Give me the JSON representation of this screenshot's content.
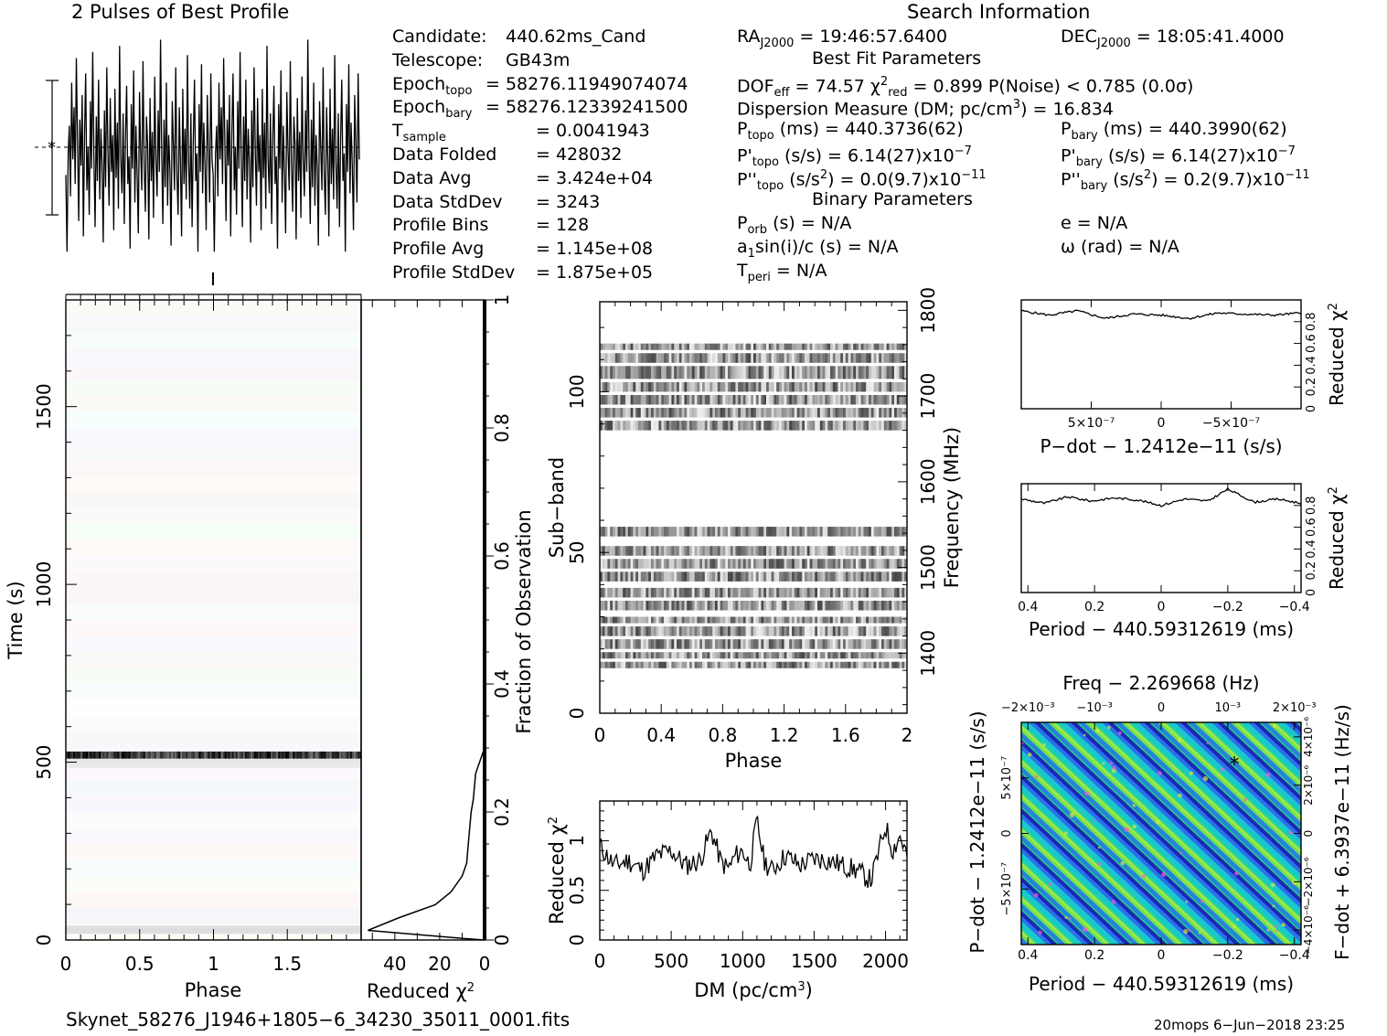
{
  "header": {
    "profile_title": "2 Pulses of Best Profile",
    "search_title": "Search Information"
  },
  "info_left": [
    {
      "label": "Candidate:",
      "value": "440.62ms_Cand"
    },
    {
      "label": "Telescope:",
      "value": "GB43m"
    },
    {
      "label": "Epoch",
      "sub": "topo",
      "value": "= 58276.11949074074"
    },
    {
      "label": "Epoch",
      "sub": "bary",
      "value": "= 58276.12339241500"
    },
    {
      "label": "T",
      "sub": "sample",
      "value": "=   0.0041943"
    },
    {
      "label": "Data Folded",
      "value": "=   428032"
    },
    {
      "label": "Data Avg",
      "value": "=   3.424e+04"
    },
    {
      "label": "Data StdDev",
      "value": "=   3243"
    },
    {
      "label": "Profile Bins",
      "value": "=   128"
    },
    {
      "label": "Profile Avg",
      "value": "=   1.145e+08"
    },
    {
      "label": "Profile StdDev",
      "value": "=   1.875e+05"
    }
  ],
  "info_right": {
    "ra": "RA",
    "ra_sub": "J2000",
    "ra_val": "= 19:46:57.6400",
    "dec": "DEC",
    "dec_sub": "J2000",
    "dec_val": "= 18:05:41.4000",
    "best_fit": "Best Fit Parameters",
    "dof": "DOF",
    "dof_sub": "eff",
    "dof_val": "= 74.57",
    "chi": "χ",
    "chi_sup": "2",
    "chi_sub": "red",
    "chi_val": "= 0.899",
    "pnoise": "P(Noise) < 0.785   (0.0σ)",
    "dm_line_a": "Dispersion Measure (DM; pc/cm",
    "dm_line_sup": "3",
    "dm_line_b": ") = 16.834",
    "ptopo": "P",
    "ptopo_sub": "topo",
    "ptopo_val": "(ms)  =   440.3736(62)",
    "pbary": "P",
    "pbary_sub": "bary",
    "pbary_val": "(ms)  =   440.3990(62)",
    "pdtopo": "P'",
    "pdtopo_sub": "topo",
    "pdtopo_val": "(s/s)  =   6.14(27)x10",
    "pdtopo_exp": "−7",
    "pdbary": "P'",
    "pdbary_sub": "bary",
    "pdbary_val": "(s/s)  =   6.14(27)x10",
    "pdbary_exp": "−7",
    "pddtopo": "P''",
    "pddtopo_sub": "topo",
    "pddtopo_val_a": "(s/s",
    "pddtopo_val_sup": "2",
    "pddtopo_val_b": ") = 0.0(9.7)x10",
    "pddtopo_exp": "−11",
    "pddbary": "P''",
    "pddbary_sub": "bary",
    "pddbary_val_a": "(s/s",
    "pddbary_val_sup": "2",
    "pddbary_val_b": ") =   0.2(9.7)x10",
    "pddbary_exp": "−11",
    "binary": "Binary Parameters",
    "porb": "P",
    "porb_sub": "orb",
    "porb_val": "(s) = N/A",
    "e_val": "e = N/A",
    "asini": "a",
    "asini_sub": "1",
    "asini_val": "sin(i)/c (s) = N/A",
    "omega_val": "ω (rad) = N/A",
    "tperi": "T",
    "tperi_sub": "peri",
    "tperi_val": "= N/A"
  },
  "footer": {
    "filename": "Skynet_58276_J1946+1805−6_34230_35011_0001.fits",
    "stamp": "20mops   6−Jun−2018 23:25"
  },
  "colors": {
    "ink": "#000000",
    "cmap": [
      "#1b1bb0",
      "#2b6cf0",
      "#19c4d4",
      "#22d98a",
      "#7ee640",
      "#d6e83a",
      "#ff5ac8"
    ]
  },
  "chart_data": [
    {
      "id": "profile",
      "type": "line",
      "title": "2 Pulses of Best Profile",
      "x_range": [
        0,
        2
      ],
      "n_points": 256,
      "values_note_free": true,
      "values": [
        0.55,
        0.3,
        0.62,
        0.71,
        0.48,
        0.85,
        0.6,
        0.77,
        0.52,
        0.93,
        0.66,
        0.4,
        0.73,
        0.58,
        0.81,
        0.35,
        0.69,
        0.88,
        0.5,
        0.64,
        0.42,
        0.79,
        0.57,
        0.95,
        0.61,
        0.38,
        0.74,
        0.53,
        0.86,
        0.47,
        0.7,
        0.59,
        0.33,
        0.76,
        0.51,
        0.9,
        0.63,
        0.45,
        0.8,
        0.56,
        0.68,
        0.37,
        0.83,
        0.54,
        0.72,
        0.44,
        0.97,
        0.6,
        0.49,
        0.75,
        0.39,
        0.67,
        0.84,
        0.52,
        0.61,
        0.31,
        0.78,
        0.57,
        0.89,
        0.46,
        0.71,
        0.55,
        0.36,
        0.82,
        0.63,
        0.5,
        0.92,
        0.58,
        0.43,
        0.74,
        0.65,
        0.34,
        0.8,
        0.53,
        0.69,
        0.41,
        0.87,
        0.6,
        0.48,
        0.76,
        0.56,
        0.99,
        0.62,
        0.39,
        0.73,
        0.51,
        0.85,
        0.45,
        0.68,
        0.57,
        0.32,
        0.79,
        0.64,
        0.5,
        0.9,
        0.55,
        0.42,
        0.77,
        0.6,
        0.35,
        0.83,
        0.52,
        0.7,
        0.47,
        0.94,
        0.59,
        0.44,
        0.75,
        0.38,
        0.66,
        0.86,
        0.53,
        0.62,
        0.3,
        0.78,
        0.56,
        0.91,
        0.49,
        0.72,
        0.58,
        0.37,
        0.81,
        0.64,
        0.46,
        0.88,
        0.6,
        0.55,
        0.3,
        0.62,
        0.71,
        0.48,
        0.85,
        0.6,
        0.77,
        0.52,
        0.93,
        0.66,
        0.4,
        0.73,
        0.58,
        0.81,
        0.35,
        0.69,
        0.88,
        0.5,
        0.64,
        0.42,
        0.79,
        0.57,
        0.95,
        0.61,
        0.38,
        0.74,
        0.53,
        0.86,
        0.47,
        0.7,
        0.59,
        0.33,
        0.76,
        0.51,
        0.9,
        0.63,
        0.45,
        0.8,
        0.56,
        0.68,
        0.37,
        0.83,
        0.54,
        0.72,
        0.44,
        0.97,
        0.6,
        0.49,
        0.75,
        0.39,
        0.67,
        0.84,
        0.52,
        0.61,
        0.31,
        0.78,
        0.57,
        0.89,
        0.46,
        0.71,
        0.55,
        0.36,
        0.82,
        0.63,
        0.5,
        0.92,
        0.58,
        0.43,
        0.74,
        0.65,
        0.34,
        0.8,
        0.53,
        0.69,
        0.41,
        0.87,
        0.6,
        0.48,
        0.76,
        0.56,
        0.99,
        0.62,
        0.39,
        0.73,
        0.51,
        0.85,
        0.45,
        0.68,
        0.57,
        0.32,
        0.79,
        0.64,
        0.5,
        0.9,
        0.55,
        0.42,
        0.77,
        0.6,
        0.35,
        0.83,
        0.52,
        0.7,
        0.47,
        0.94,
        0.59,
        0.44,
        0.75,
        0.38,
        0.66,
        0.86,
        0.53,
        0.62,
        0.3,
        0.78,
        0.56,
        0.91,
        0.49,
        0.72,
        0.58,
        0.37,
        0.81,
        0.64,
        0.46,
        0.88,
        0.6
      ]
    },
    {
      "id": "time_phase",
      "type": "heatmap",
      "xlabel": "Phase",
      "ylabel": "Time (s)",
      "xlim": [
        0,
        2
      ],
      "ylim": [
        0,
        1800
      ],
      "x_ticks": [
        "0",
        "0.5",
        "1",
        "1.5"
      ],
      "x_tick_values": [
        0,
        0.5,
        1,
        1.5
      ],
      "y_ticks": [
        "0",
        "500",
        "1000",
        "1500"
      ],
      "y_tick_values": [
        0,
        500,
        1000,
        1500
      ],
      "bright_band_time": [
        510,
        530
      ]
    },
    {
      "id": "chi_vs_fraction",
      "type": "line",
      "xlabel": "Reduced χ",
      "xlabel_sup": "2",
      "ylabel": "Fraction of Observation",
      "xlim": [
        55,
        0
      ],
      "ylim": [
        0,
        1
      ],
      "x_ticks": [
        "40",
        "20",
        "0"
      ],
      "x_tick_values": [
        40,
        20,
        0
      ],
      "y_ticks": [
        "0",
        "0.2",
        "0.4",
        "0.6",
        "0.8",
        "1"
      ],
      "y_tick_values": [
        0,
        0.2,
        0.4,
        0.6,
        0.8,
        1
      ],
      "x": [
        0,
        8,
        52,
        38,
        22,
        15,
        10,
        8,
        7,
        6,
        5,
        4,
        3,
        1,
        0
      ],
      "y": [
        0,
        0.002,
        0.015,
        0.035,
        0.055,
        0.075,
        0.1,
        0.12,
        0.16,
        0.2,
        0.22,
        0.26,
        0.27,
        0.29,
        0.3
      ]
    },
    {
      "id": "subband_phase",
      "type": "heatmap",
      "xlabel": "Phase",
      "ylabel": "Sub−band",
      "ylabel2": "Frequency (MHz)",
      "xlim": [
        0,
        2
      ],
      "ylim": [
        0,
        128
      ],
      "x_ticks": [
        "0",
        "0.4",
        "0.8",
        "1.2",
        "1.6",
        "2"
      ],
      "x_tick_values": [
        0,
        0.4,
        0.8,
        1.2,
        1.6,
        2
      ],
      "y_ticks": [
        "0",
        "50",
        "100"
      ],
      "y_tick_values": [
        0,
        50,
        100
      ],
      "y2_ticks": [
        "1400",
        "1500",
        "1600",
        "1700",
        "1800"
      ],
      "y2_tick_values": [
        1400,
        1500,
        1600,
        1700,
        1800
      ],
      "y2lim": [
        1330,
        1810
      ],
      "band_rows": [
        [
          14,
          16
        ],
        [
          17,
          19
        ],
        [
          20,
          23
        ],
        [
          24,
          27
        ],
        [
          28,
          30
        ],
        [
          32,
          35
        ],
        [
          36,
          39
        ],
        [
          41,
          44
        ],
        [
          45,
          48
        ],
        [
          49,
          52
        ],
        [
          55,
          58
        ],
        [
          88,
          91
        ],
        [
          92,
          95
        ],
        [
          96,
          99
        ],
        [
          100,
          103
        ],
        [
          104,
          108
        ],
        [
          109,
          112
        ],
        [
          113,
          115
        ]
      ]
    },
    {
      "id": "dm_curve",
      "type": "line",
      "xlabel": "DM (pc/cm",
      "xlabel_sup": "3",
      "xlabel_end": ")",
      "ylabel": "Reduced χ",
      "ylabel_sup": "2",
      "xlim": [
        0,
        2150
      ],
      "ylim": [
        0,
        1.4
      ],
      "x_ticks": [
        "0",
        "500",
        "1000",
        "1500",
        "2000"
      ],
      "x_tick_values": [
        0,
        500,
        1000,
        1500,
        2000
      ],
      "y_ticks": [
        "0",
        "0.5",
        "1"
      ],
      "y_tick_values": [
        0,
        0.5,
        1
      ],
      "x": [
        0,
        100,
        200,
        300,
        400,
        500,
        600,
        700,
        780,
        850,
        900,
        950,
        1000,
        1050,
        1100,
        1150,
        1200,
        1300,
        1400,
        1500,
        1600,
        1700,
        1800,
        1900,
        2000,
        2050,
        2100,
        2150
      ],
      "y": [
        0.95,
        0.75,
        0.8,
        0.7,
        0.85,
        0.9,
        0.75,
        0.8,
        1.1,
        0.78,
        0.72,
        0.85,
        0.9,
        0.75,
        1.2,
        0.8,
        0.7,
        0.85,
        0.75,
        0.82,
        0.8,
        0.75,
        0.7,
        0.6,
        1.15,
        0.9,
        1.05,
        0.85
      ]
    },
    {
      "id": "pdot_curve",
      "type": "line",
      "xlabel": "P−dot − 1.2412e−11 (s/s)",
      "ylabel": "Reduced χ",
      "ylabel_sup": "2",
      "x_ticks": [
        "5×10⁻⁷",
        "0",
        "−5×10⁻⁷"
      ],
      "x_tick_values": [
        5e-07,
        0,
        -5e-07
      ],
      "y_ticks": [
        "0",
        "0.2",
        "0.4",
        "0.6",
        "0.8"
      ],
      "y_tick_values": [
        0,
        0.2,
        0.4,
        0.6,
        0.8
      ],
      "xlim": [
        1e-06,
        -1e-06
      ],
      "ylim": [
        0,
        1
      ],
      "x": [
        1e-06,
        8e-07,
        6e-07,
        4e-07,
        2e-07,
        0,
        -2e-07,
        -4e-07,
        -6e-07,
        -8e-07,
        -1e-06
      ],
      "y": [
        0.9,
        0.86,
        0.9,
        0.83,
        0.87,
        0.86,
        0.83,
        0.88,
        0.87,
        0.86,
        0.88
      ]
    },
    {
      "id": "period_curve",
      "type": "line",
      "xlabel": "Period − 440.59312619 (ms)",
      "ylabel": "Reduced χ",
      "ylabel_sup": "2",
      "x_ticks": [
        "0.4",
        "0.2",
        "0",
        "−0.2",
        "−0.4"
      ],
      "x_tick_values": [
        0.4,
        0.2,
        0,
        -0.2,
        -0.4
      ],
      "y_ticks": [
        "0",
        "0.2",
        "0.4",
        "0.6",
        "0.8"
      ],
      "y_tick_values": [
        0,
        0.2,
        0.4,
        0.6,
        0.8
      ],
      "xlim": [
        0.42,
        -0.42
      ],
      "ylim": [
        0,
        1
      ],
      "x": [
        0.42,
        0.35,
        0.28,
        0.21,
        0.14,
        0.07,
        0,
        -0.07,
        -0.14,
        -0.2,
        -0.28,
        -0.35,
        -0.42
      ],
      "y": [
        0.86,
        0.82,
        0.88,
        0.84,
        0.87,
        0.85,
        0.8,
        0.86,
        0.84,
        0.95,
        0.83,
        0.86,
        0.82
      ]
    },
    {
      "id": "p_pdot_plane",
      "type": "heatmap",
      "title": "Freq − 2.269668 (Hz)",
      "xlabel": "Period − 440.59312619 (ms)",
      "ylabel": "P−dot − 1.2412e−11 (s/s)",
      "ylabel2": "F−dot + 6.3937e−11 (Hz/s)",
      "x_ticks": [
        "0.4",
        "0.2",
        "0",
        "−0.2",
        "−0.4"
      ],
      "x_tick_values": [
        0.4,
        0.2,
        0,
        -0.2,
        -0.4
      ],
      "top_ticks": [
        "−2×10⁻³",
        "−10⁻³",
        "0",
        "10⁻³",
        "2×10⁻³"
      ],
      "top_tick_values": [
        -0.002,
        -0.001,
        0,
        0.001,
        0.002
      ],
      "y_ticks": [
        "5×10⁻⁷",
        "0",
        "−5×10⁻⁷"
      ],
      "y_tick_values": [
        5e-07,
        0,
        -5e-07
      ],
      "y2_ticks": [
        "−4×10⁻⁶",
        "−2×10⁻⁶",
        "0",
        "2×10⁻⁶",
        "4×10⁻⁶"
      ],
      "y2_tick_values": [
        -4e-06,
        -2e-06,
        0,
        2e-06,
        4e-06
      ],
      "xlim": [
        0.42,
        -0.42
      ],
      "ylim": [
        1e-06,
        -1e-06
      ],
      "best_marker": {
        "x": -0.22,
        "y": 6.1e-07
      }
    }
  ]
}
